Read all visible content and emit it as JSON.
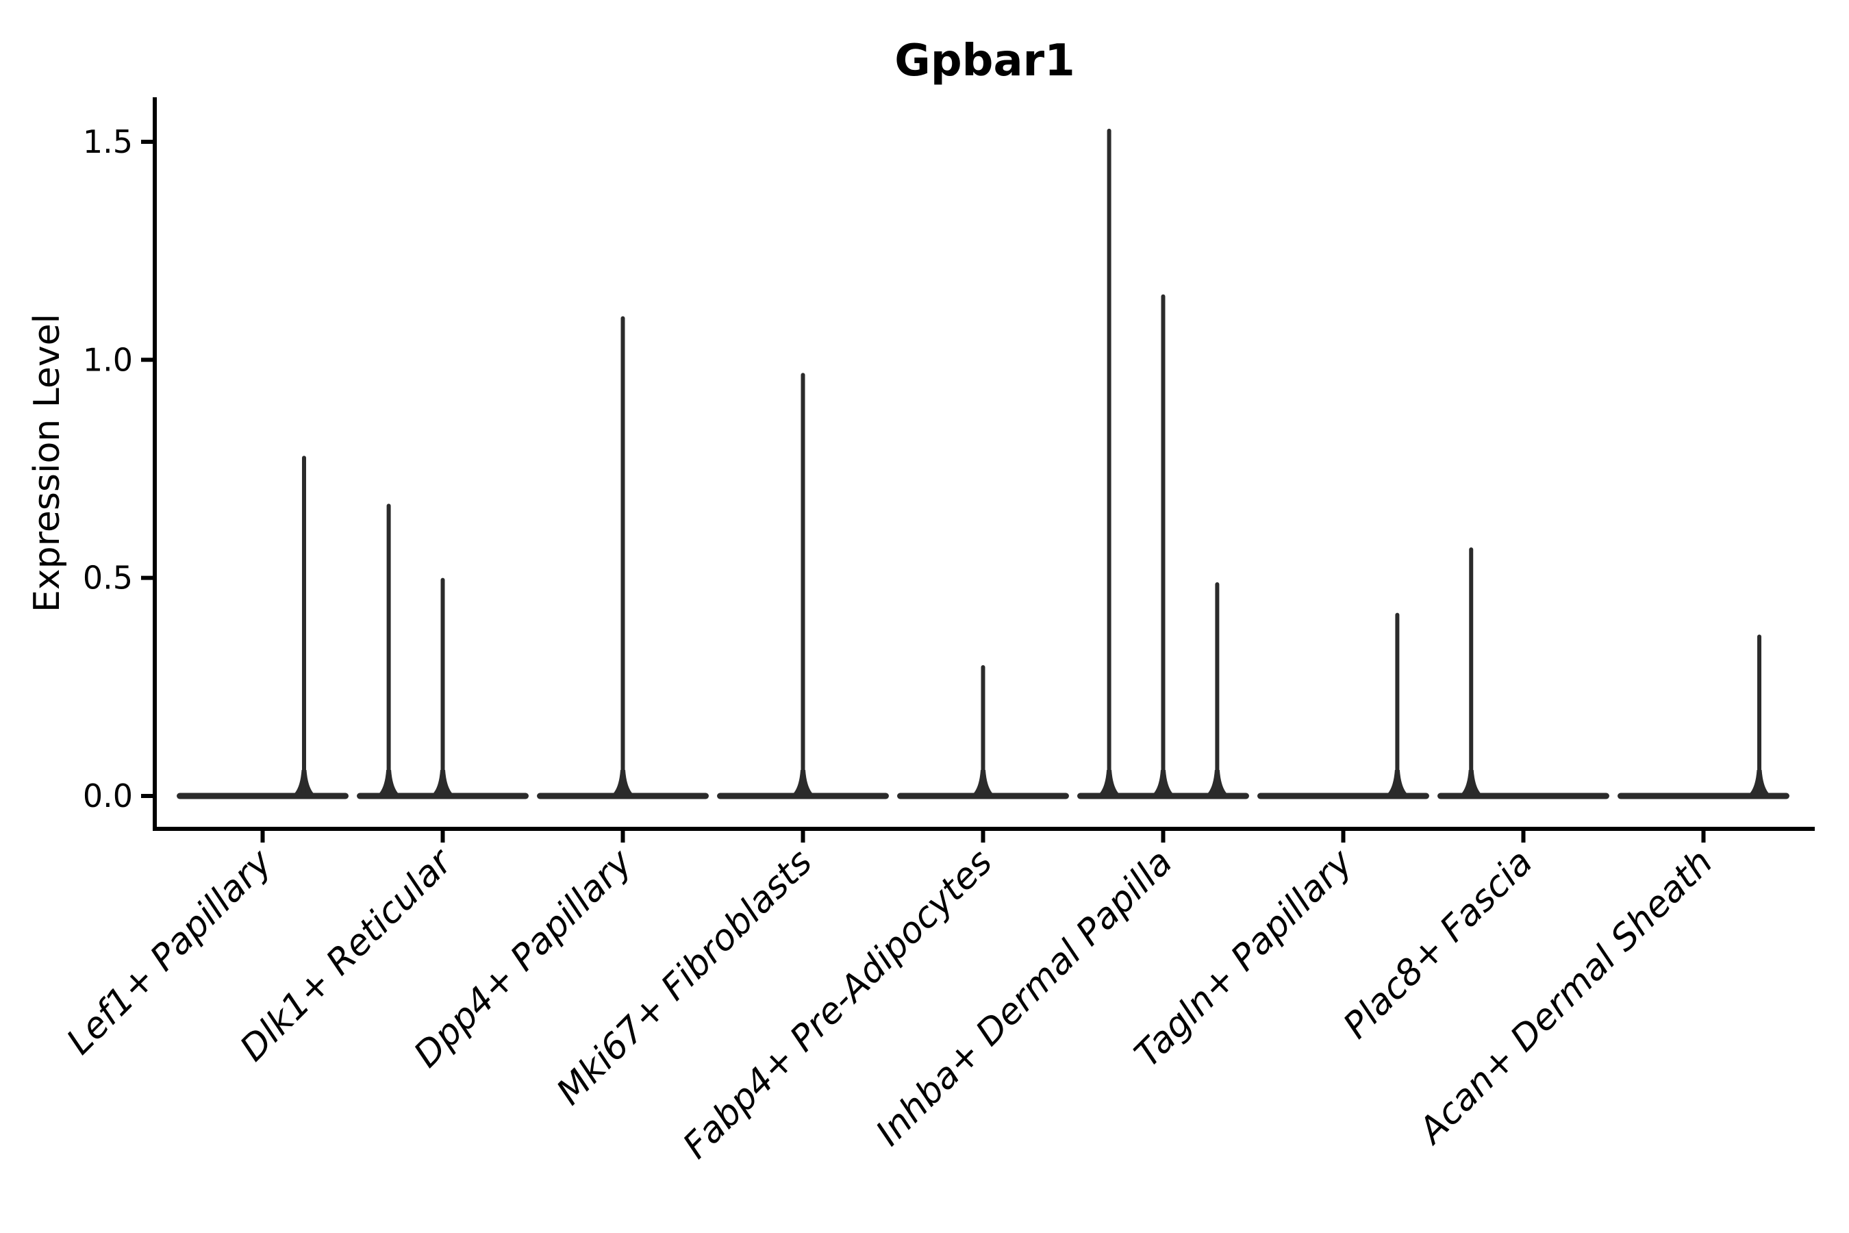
{
  "figure": {
    "background": "#ffffff"
  },
  "chart_data": {
    "type": "violin",
    "title": "Gpbar1",
    "ylabel": "Expression Level",
    "xlabel": "",
    "yticks": [
      0.0,
      0.5,
      1.0,
      1.5
    ],
    "ytick_labels": [
      "0.0",
      "0.5",
      "1.0",
      "1.5"
    ],
    "ylim": [
      -0.08,
      1.6
    ],
    "grid": false,
    "legend": null,
    "ink_color": "#2b2b2b",
    "axis_color": "#000000",
    "violin_base_halfwidth": 0.46,
    "categories": [
      {
        "label": "Lef1+ Papillary",
        "spikes": [
          {
            "dx": 0.23,
            "value": 0.78
          }
        ]
      },
      {
        "label": "Dlk1+ Reticular",
        "spikes": [
          {
            "dx": -0.3,
            "value": 0.67
          },
          {
            "dx": 0.0,
            "value": 0.5
          }
        ]
      },
      {
        "label": "Dpp4+ Papillary",
        "spikes": [
          {
            "dx": 0.0,
            "value": 1.1
          }
        ]
      },
      {
        "label": "Mki67+ Fibroblasts",
        "spikes": [
          {
            "dx": 0.0,
            "value": 0.97
          }
        ]
      },
      {
        "label": "Fabp4+ Pre-Adipocytes",
        "spikes": [
          {
            "dx": 0.0,
            "value": 0.3
          }
        ]
      },
      {
        "label": "Inhba+ Dermal Papilla",
        "spikes": [
          {
            "dx": -0.3,
            "value": 1.53
          },
          {
            "dx": 0.0,
            "value": 1.15
          },
          {
            "dx": 0.3,
            "value": 0.49
          }
        ]
      },
      {
        "label": "Tagln+ Papillary",
        "spikes": [
          {
            "dx": 0.3,
            "value": 0.42
          }
        ]
      },
      {
        "label": "Plac8+ Fascia",
        "spikes": [
          {
            "dx": -0.29,
            "value": 0.57
          }
        ]
      },
      {
        "label": "Acan+ Dermal Sheath",
        "spikes": [
          {
            "dx": 0.31,
            "value": 0.37
          }
        ]
      }
    ]
  }
}
